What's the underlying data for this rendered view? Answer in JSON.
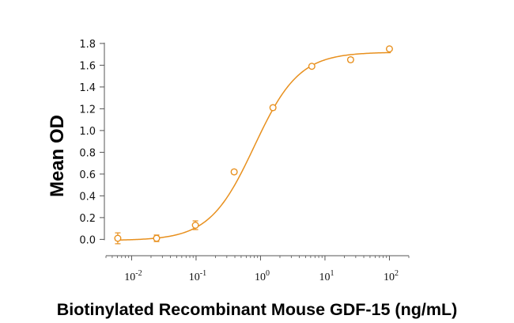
{
  "chart_data": {
    "type": "scatter",
    "title": "",
    "xlabel": "Biotinylated Recombinant Mouse GDF-15 (ng/mL)",
    "ylabel": "Mean OD",
    "x_scale": "log",
    "xlim": [
      0.004,
      200
    ],
    "ylim": [
      -0.15,
      1.85
    ],
    "yticks": [
      "0.0",
      "0.2",
      "0.4",
      "0.6",
      "0.8",
      "1.0",
      "1.2",
      "1.4",
      "1.6",
      "1.8"
    ],
    "xticks": [
      {
        "base": "10",
        "exp": "-2",
        "value": 0.01
      },
      {
        "base": "10",
        "exp": "-1",
        "value": 0.1
      },
      {
        "base": "10",
        "exp": "0",
        "value": 1
      },
      {
        "base": "10",
        "exp": "1",
        "value": 10
      },
      {
        "base": "10",
        "exp": "2",
        "value": 100
      }
    ],
    "grid": false,
    "legend": "none",
    "color": "#E8901E",
    "series": [
      {
        "points": [
          {
            "x": 0.0061,
            "y": 0.01,
            "err": 0.05
          },
          {
            "x": 0.0244,
            "y": 0.01,
            "err": 0.03
          },
          {
            "x": 0.0977,
            "y": 0.13,
            "err": 0.04
          },
          {
            "x": 0.39,
            "y": 0.62,
            "err": 0.02
          },
          {
            "x": 1.56,
            "y": 1.21,
            "err": 0.02
          },
          {
            "x": 6.25,
            "y": 1.59,
            "err": 0.015
          },
          {
            "x": 25,
            "y": 1.65,
            "err": 0.02
          },
          {
            "x": 100,
            "y": 1.75,
            "err": 0.015
          }
        ],
        "fit": {
          "bottom": -0.01,
          "top": 1.72,
          "ec50": 0.8,
          "hill": 1.25
        }
      }
    ]
  }
}
